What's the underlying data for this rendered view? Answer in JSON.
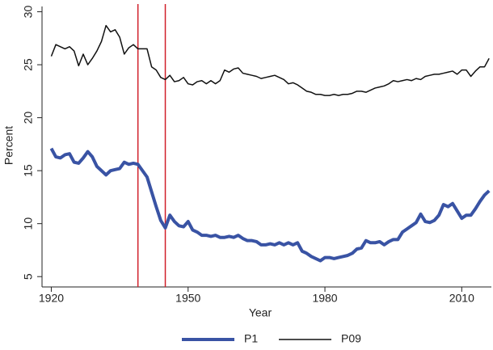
{
  "chart_data": {
    "type": "line",
    "x_label": "Year",
    "y_label": "Percent",
    "x": [
      1920,
      1921,
      1922,
      1923,
      1924,
      1925,
      1926,
      1927,
      1928,
      1929,
      1930,
      1931,
      1932,
      1933,
      1934,
      1935,
      1936,
      1937,
      1938,
      1939,
      1940,
      1941,
      1942,
      1943,
      1944,
      1945,
      1946,
      1947,
      1948,
      1949,
      1950,
      1951,
      1952,
      1953,
      1954,
      1955,
      1956,
      1957,
      1958,
      1959,
      1960,
      1961,
      1962,
      1963,
      1964,
      1965,
      1966,
      1967,
      1968,
      1969,
      1970,
      1971,
      1972,
      1973,
      1974,
      1975,
      1976,
      1977,
      1978,
      1979,
      1980,
      1981,
      1982,
      1983,
      1984,
      1985,
      1986,
      1987,
      1988,
      1989,
      1990,
      1991,
      1992,
      1993,
      1994,
      1995,
      1996,
      1997,
      1998,
      1999,
      2000,
      2001,
      2002,
      2003,
      2004,
      2005,
      2006,
      2007,
      2008,
      2009,
      2010,
      2011,
      2012,
      2013,
      2014,
      2015,
      2016
    ],
    "series": [
      {
        "name": "P1",
        "color": "#3953a4",
        "width": 4,
        "values": [
          17.1,
          16.3,
          16.2,
          16.5,
          16.6,
          15.8,
          15.7,
          16.2,
          16.8,
          16.3,
          15.4,
          15.0,
          14.6,
          15.0,
          15.1,
          15.2,
          15.8,
          15.6,
          15.7,
          15.6,
          15.0,
          14.4,
          13.0,
          11.6,
          10.3,
          9.6,
          10.8,
          10.2,
          9.8,
          9.7,
          10.2,
          9.4,
          9.2,
          8.9,
          8.9,
          8.8,
          8.9,
          8.7,
          8.7,
          8.8,
          8.7,
          8.9,
          8.6,
          8.4,
          8.4,
          8.3,
          8.0,
          8.0,
          8.1,
          8.0,
          8.2,
          8.0,
          8.2,
          8.0,
          8.2,
          7.4,
          7.2,
          6.9,
          6.7,
          6.5,
          6.8,
          6.8,
          6.7,
          6.8,
          6.9,
          7.0,
          7.2,
          7.6,
          7.7,
          8.4,
          8.2,
          8.2,
          8.3,
          8.0,
          8.3,
          8.5,
          8.5,
          9.2,
          9.5,
          9.8,
          10.1,
          10.9,
          10.2,
          10.1,
          10.3,
          10.8,
          11.8,
          11.6,
          11.9,
          11.2,
          10.5,
          10.8,
          10.8,
          11.4,
          12.1,
          12.7,
          13.1
        ]
      },
      {
        "name": "P09",
        "color": "#111111",
        "width": 1.5,
        "values": [
          25.8,
          26.9,
          26.7,
          26.5,
          26.7,
          26.3,
          24.9,
          26.0,
          25.0,
          25.6,
          26.3,
          27.2,
          28.7,
          28.1,
          28.3,
          27.6,
          26.0,
          26.6,
          26.9,
          26.5,
          26.5,
          26.5,
          24.8,
          24.5,
          23.8,
          23.6,
          24.0,
          23.4,
          23.5,
          23.8,
          23.2,
          23.1,
          23.4,
          23.5,
          23.2,
          23.5,
          23.2,
          23.5,
          24.5,
          24.3,
          24.6,
          24.7,
          24.2,
          24.1,
          24.0,
          23.9,
          23.7,
          23.8,
          23.9,
          24.0,
          23.8,
          23.6,
          23.2,
          23.3,
          23.1,
          22.8,
          22.5,
          22.4,
          22.2,
          22.2,
          22.1,
          22.1,
          22.2,
          22.1,
          22.2,
          22.2,
          22.3,
          22.5,
          22.5,
          22.4,
          22.6,
          22.8,
          22.9,
          23.0,
          23.2,
          23.5,
          23.4,
          23.5,
          23.6,
          23.5,
          23.7,
          23.6,
          23.9,
          24.0,
          24.1,
          24.1,
          24.2,
          24.3,
          24.4,
          24.1,
          24.5,
          24.5,
          23.9,
          24.4,
          24.8,
          24.8,
          25.6
        ]
      }
    ],
    "vlines": [
      1939,
      1945
    ],
    "vline_color": "#d0202a",
    "xlim": [
      1918.5,
      2016.5
    ],
    "xticks": [
      1920,
      1950,
      1980,
      2010
    ],
    "ylim": [
      4.1,
      30.5
    ],
    "yticks": [
      5,
      10,
      15,
      20,
      25,
      30
    ],
    "grid": false,
    "legend": "bottom"
  }
}
